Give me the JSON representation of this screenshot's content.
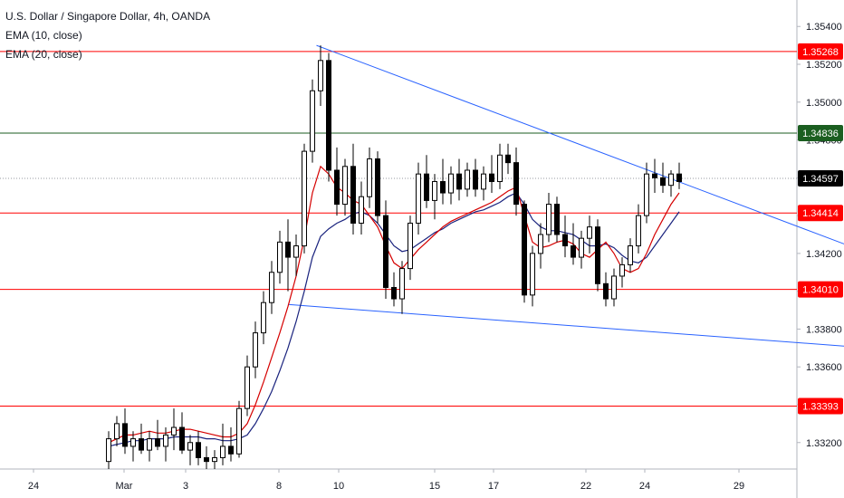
{
  "header": {
    "title": "U.S. Dollar / Singapore Dollar, 4h, OANDA",
    "indicators": [
      "EMA (10, close)",
      "EMA (20, close)"
    ]
  },
  "colors": {
    "up_candle": "#ffffff",
    "down_candle": "#000000",
    "candle_outline": "#000000",
    "ema10": "#d50000",
    "ema20": "#1a237e",
    "trendline": "#2962ff",
    "support_resistance": "#ff0000",
    "green_level": "#1b5e20",
    "price_tag": "#000000"
  },
  "chart_data": {
    "type": "candlestick",
    "title": "U.S. Dollar / Singapore Dollar, 4h, OANDA",
    "x_tick_labels": [
      "24",
      "Mar",
      "3",
      "8",
      "10",
      "15",
      "17",
      "22",
      "24",
      "29"
    ],
    "y_tick_labels": [
      "1.35400",
      "1.35200",
      "1.35000",
      "1.34800",
      "1.34600",
      "1.34400",
      "1.34200",
      "1.34000",
      "1.33800",
      "1.33600",
      "1.33400",
      "1.33200"
    ],
    "ylim": [
      1.3306,
      1.3554
    ],
    "current_price": 1.34597,
    "horizontal_levels": [
      {
        "value": 1.35268,
        "label": "1.35268",
        "color": "#ff0000"
      },
      {
        "value": 1.34836,
        "label": "1.34836",
        "color": "#1b5e20"
      },
      {
        "value": 1.34414,
        "label": "1.34414",
        "color": "#ff0000"
      },
      {
        "value": 1.3401,
        "label": "1.34010",
        "color": "#ff0000"
      },
      {
        "value": 1.33393,
        "label": "1.33393",
        "color": "#ff0000"
      }
    ],
    "trendlines": [
      {
        "from": [
          25.5,
          1.353
        ],
        "to": [
          99.5,
          1.341
        ]
      },
      {
        "from": [
          22.0,
          1.3393
        ],
        "to": [
          99.5,
          1.3368
        ]
      }
    ],
    "ema10": [
      1.332,
      1.3322,
      1.3324,
      1.3324,
      1.3325,
      1.3326,
      1.3325,
      1.3325,
      1.3326,
      1.3327,
      1.3327,
      1.3326,
      1.3325,
      1.3324,
      1.3323,
      1.3323,
      1.3325,
      1.333,
      1.334,
      1.3352,
      1.3365,
      1.3378,
      1.3392,
      1.3408,
      1.3428,
      1.3452,
      1.3466,
      1.3462,
      1.3455,
      1.3452,
      1.3448,
      1.3446,
      1.344,
      1.3434,
      1.3424,
      1.3415,
      1.3412,
      1.3417,
      1.3422,
      1.3426,
      1.343,
      1.3434,
      1.3437,
      1.3439,
      1.3441,
      1.3443,
      1.3445,
      1.3447,
      1.345,
      1.3453,
      1.3455,
      1.344,
      1.3426,
      1.3423,
      1.3424,
      1.3426,
      1.3427,
      1.3425,
      1.342,
      1.3418,
      1.3422,
      1.3426,
      1.342,
      1.3412,
      1.341,
      1.3412,
      1.342,
      1.343,
      1.3438,
      1.3446,
      1.3452
    ],
    "ema20": [
      1.3318,
      1.3319,
      1.332,
      1.3321,
      1.3321,
      1.3322,
      1.3322,
      1.3322,
      1.3323,
      1.3323,
      1.3323,
      1.3323,
      1.3322,
      1.3322,
      1.3321,
      1.3321,
      1.3322,
      1.3324,
      1.333,
      1.3338,
      1.3347,
      1.3358,
      1.337,
      1.3384,
      1.34,
      1.3418,
      1.3429,
      1.3433,
      1.3436,
      1.3438,
      1.3441,
      1.3442,
      1.344,
      1.3436,
      1.343,
      1.3424,
      1.3421,
      1.3422,
      1.3425,
      1.3428,
      1.3431,
      1.3433,
      1.3436,
      1.3438,
      1.344,
      1.3442,
      1.3443,
      1.3445,
      1.3447,
      1.345,
      1.3452,
      1.3446,
      1.3438,
      1.3434,
      1.3432,
      1.3432,
      1.3431,
      1.343,
      1.3427,
      1.3424,
      1.3424,
      1.3425,
      1.3423,
      1.3419,
      1.3416,
      1.3415,
      1.3418,
      1.3424,
      1.343,
      1.3436,
      1.3442
    ],
    "candles": [
      [
        1.331,
        1.3326,
        1.3306,
        1.3322
      ],
      [
        1.3322,
        1.3334,
        1.3318,
        1.333
      ],
      [
        1.333,
        1.3338,
        1.3314,
        1.3318
      ],
      [
        1.3318,
        1.3326,
        1.331,
        1.3322
      ],
      [
        1.3322,
        1.333,
        1.3314,
        1.3316
      ],
      [
        1.3316,
        1.3326,
        1.331,
        1.3322
      ],
      [
        1.3322,
        1.3332,
        1.3316,
        1.3318
      ],
      [
        1.3318,
        1.3328,
        1.331,
        1.3324
      ],
      [
        1.3324,
        1.3338,
        1.3316,
        1.3328
      ],
      [
        1.3328,
        1.3336,
        1.3314,
        1.3316
      ],
      [
        1.3316,
        1.3324,
        1.3308,
        1.332
      ],
      [
        1.332,
        1.3326,
        1.3308,
        1.3312
      ],
      [
        1.3312,
        1.3318,
        1.3306,
        1.331
      ],
      [
        1.331,
        1.3316,
        1.3306,
        1.3312
      ],
      [
        1.3312,
        1.333,
        1.3308,
        1.3318
      ],
      [
        1.3318,
        1.3328,
        1.331,
        1.3314
      ],
      [
        1.3314,
        1.3342,
        1.3312,
        1.3338
      ],
      [
        1.3338,
        1.3366,
        1.3334,
        1.336
      ],
      [
        1.336,
        1.3384,
        1.3354,
        1.3378
      ],
      [
        1.3378,
        1.34,
        1.3372,
        1.3394
      ],
      [
        1.3394,
        1.3416,
        1.3388,
        1.341
      ],
      [
        1.341,
        1.3432,
        1.3404,
        1.3426
      ],
      [
        1.3426,
        1.3438,
        1.34,
        1.3418
      ],
      [
        1.3418,
        1.343,
        1.3408,
        1.3424
      ],
      [
        1.3424,
        1.3478,
        1.342,
        1.3474
      ],
      [
        1.3474,
        1.3512,
        1.3468,
        1.3506
      ],
      [
        1.3506,
        1.353,
        1.3498,
        1.3522
      ],
      [
        1.3522,
        1.3526,
        1.3458,
        1.3464
      ],
      [
        1.3464,
        1.3476,
        1.344,
        1.3446
      ],
      [
        1.3446,
        1.347,
        1.344,
        1.3466
      ],
      [
        1.3466,
        1.3478,
        1.343,
        1.3436
      ],
      [
        1.3436,
        1.3458,
        1.343,
        1.345
      ],
      [
        1.345,
        1.3476,
        1.3444,
        1.347
      ],
      [
        1.347,
        1.3474,
        1.3436,
        1.344
      ],
      [
        1.344,
        1.3448,
        1.3396,
        1.3402
      ],
      [
        1.3402,
        1.341,
        1.3392,
        1.3396
      ],
      [
        1.3396,
        1.3416,
        1.3388,
        1.3412
      ],
      [
        1.3412,
        1.344,
        1.3406,
        1.3436
      ],
      [
        1.3436,
        1.3468,
        1.343,
        1.3462
      ],
      [
        1.3462,
        1.3472,
        1.3444,
        1.3448
      ],
      [
        1.3448,
        1.3462,
        1.3438,
        1.3458
      ],
      [
        1.3458,
        1.347,
        1.3446,
        1.3452
      ],
      [
        1.3452,
        1.3466,
        1.3446,
        1.3462
      ],
      [
        1.3462,
        1.347,
        1.3448,
        1.3454
      ],
      [
        1.3454,
        1.3468,
        1.345,
        1.3464
      ],
      [
        1.3464,
        1.347,
        1.345,
        1.3454
      ],
      [
        1.3454,
        1.3466,
        1.3448,
        1.3462
      ],
      [
        1.3462,
        1.3472,
        1.3452,
        1.3458
      ],
      [
        1.3458,
        1.3478,
        1.3454,
        1.3472
      ],
      [
        1.3472,
        1.3478,
        1.3462,
        1.3468
      ],
      [
        1.3468,
        1.3476,
        1.344,
        1.3446
      ],
      [
        1.3446,
        1.3448,
        1.3394,
        1.3398
      ],
      [
        1.3398,
        1.3424,
        1.3392,
        1.342
      ],
      [
        1.342,
        1.3436,
        1.3412,
        1.343
      ],
      [
        1.343,
        1.3452,
        1.3426,
        1.3446
      ],
      [
        1.3446,
        1.345,
        1.3426,
        1.343
      ],
      [
        1.343,
        1.344,
        1.3418,
        1.3424
      ],
      [
        1.3424,
        1.3436,
        1.3414,
        1.3418
      ],
      [
        1.3418,
        1.3432,
        1.3412,
        1.3428
      ],
      [
        1.3428,
        1.344,
        1.342,
        1.3434
      ],
      [
        1.3434,
        1.3438,
        1.34,
        1.3404
      ],
      [
        1.3404,
        1.341,
        1.3392,
        1.3396
      ],
      [
        1.3396,
        1.3412,
        1.3392,
        1.3408
      ],
      [
        1.3408,
        1.3418,
        1.3402,
        1.3414
      ],
      [
        1.3414,
        1.3428,
        1.341,
        1.3424
      ],
      [
        1.3424,
        1.3446,
        1.342,
        1.344
      ],
      [
        1.344,
        1.3468,
        1.3436,
        1.3462
      ],
      [
        1.3462,
        1.347,
        1.3452,
        1.346
      ],
      [
        1.346,
        1.3468,
        1.3452,
        1.3456
      ],
      [
        1.3456,
        1.3464,
        1.345,
        1.3462
      ],
      [
        1.3462,
        1.3468,
        1.3454,
        1.3458
      ]
    ]
  }
}
